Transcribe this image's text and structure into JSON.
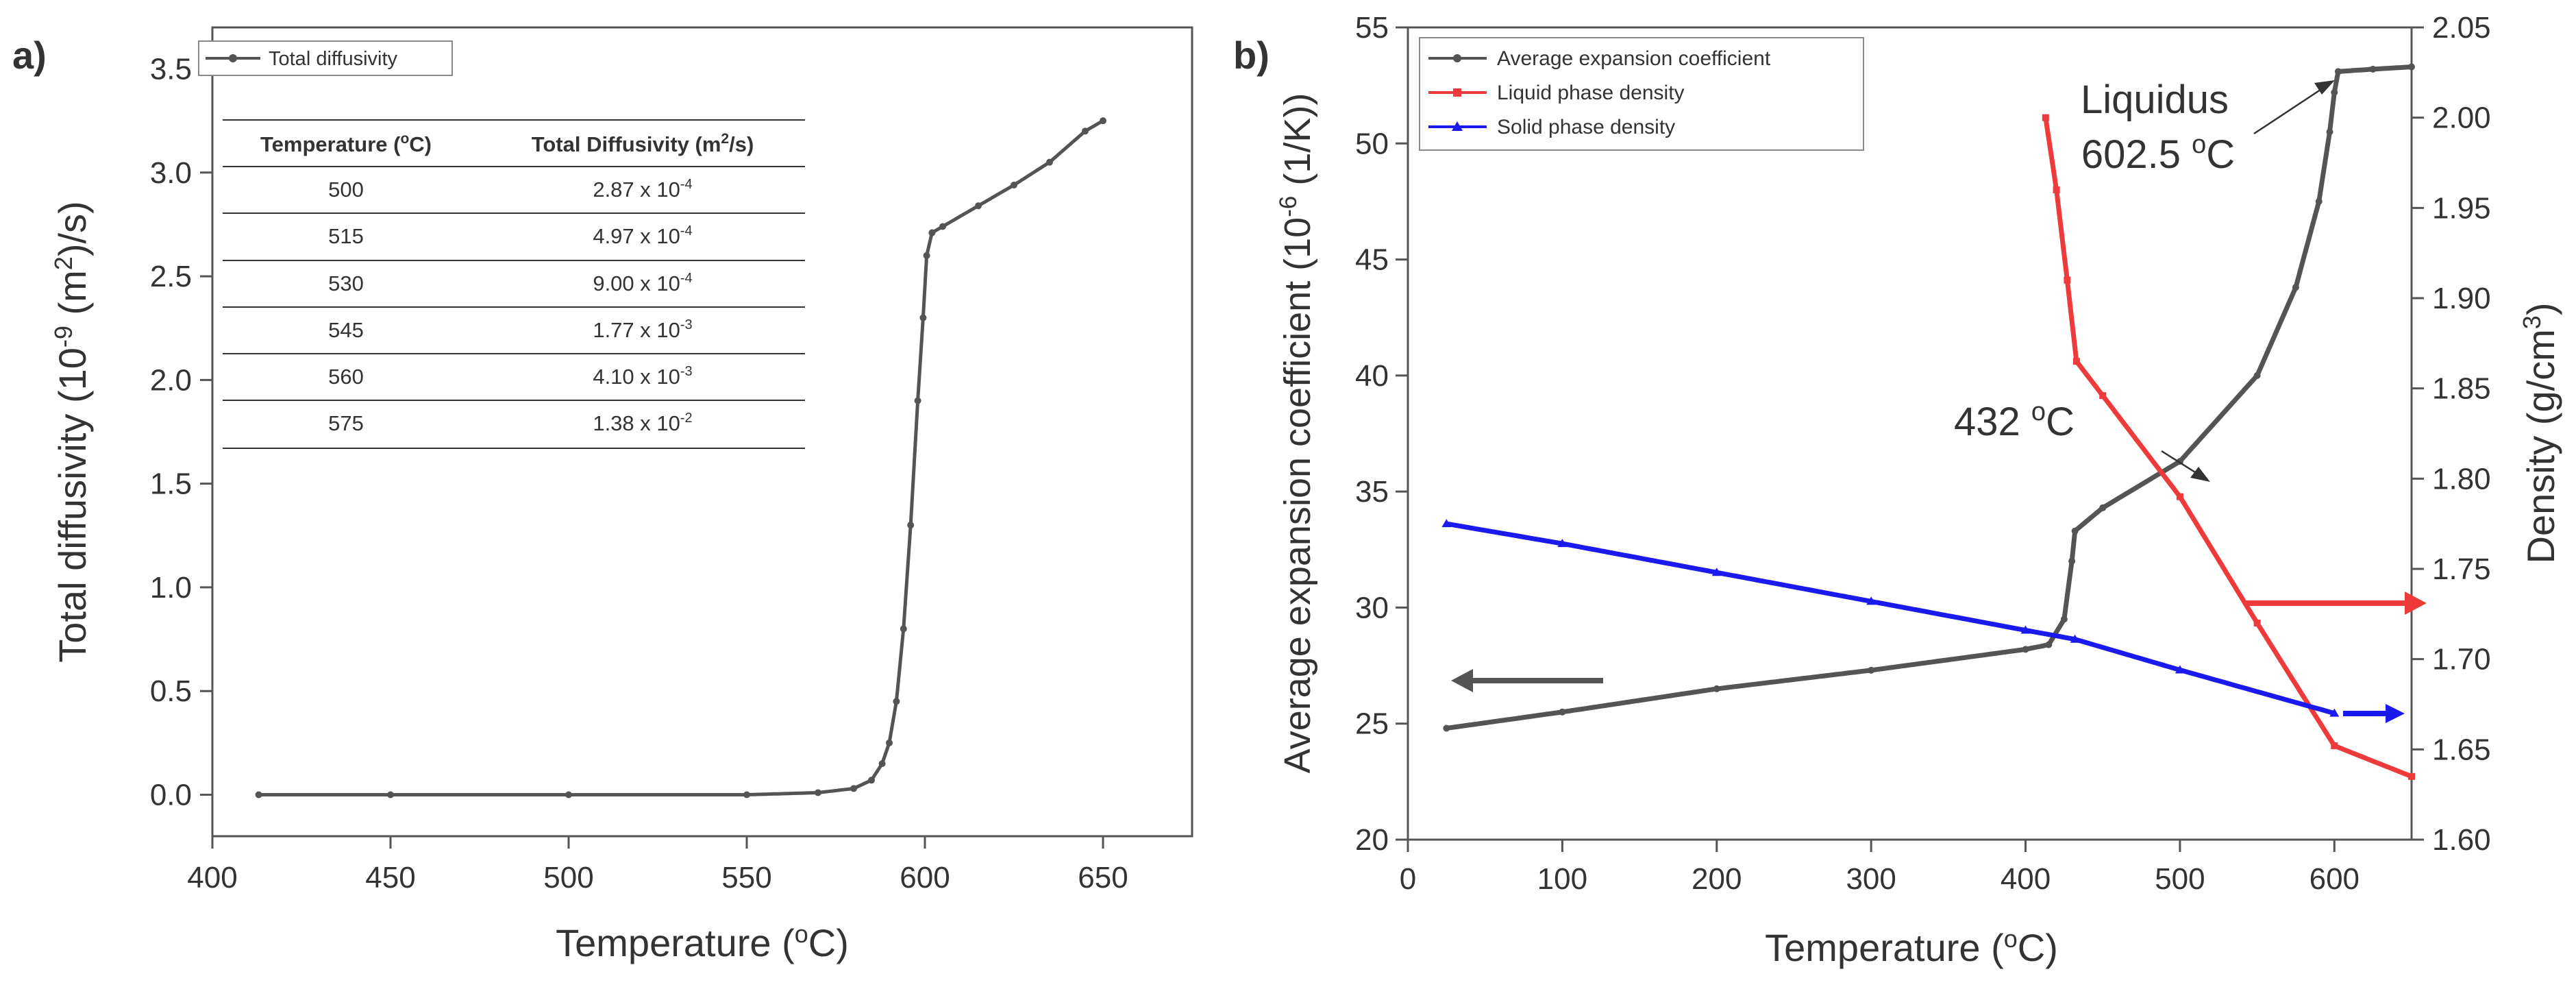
{
  "panel_a": {
    "label": "a)"
  },
  "panel_b": {
    "label": "b)"
  },
  "chart_data": [
    {
      "panel": "a",
      "type": "line",
      "xlabel": "Temperature (oC)",
      "ylabel": "Total diffusivity (10-9 (m2)/s)",
      "xlim": [
        400,
        675
      ],
      "ylim": [
        -0.2,
        3.7
      ],
      "xticks": [
        "400",
        "450",
        "500",
        "550",
        "600",
        "650"
      ],
      "yticks": [
        "0.0",
        "0.5",
        "1.0",
        "1.5",
        "2.0",
        "2.5",
        "3.0",
        "3.5"
      ],
      "legend": [
        "Total diffusivity"
      ],
      "series": [
        {
          "name": "Total diffusivity",
          "color": "#545454",
          "x": [
            413,
            450,
            500,
            550,
            570,
            580,
            585,
            588,
            590,
            592,
            594,
            596,
            598,
            599.5,
            600.5,
            602,
            605,
            615,
            625,
            635,
            645,
            650
          ],
          "y": [
            0.0,
            0.0,
            0.0,
            0.0,
            0.01,
            0.03,
            0.07,
            0.15,
            0.25,
            0.45,
            0.8,
            1.3,
            1.9,
            2.3,
            2.6,
            2.71,
            2.74,
            2.84,
            2.94,
            3.05,
            3.2,
            3.25
          ]
        }
      ],
      "inset_table": {
        "headers": [
          "Temperature (oC)",
          "Total Diffusivity (m2/s)"
        ],
        "rows": [
          [
            "500",
            "2.87 x 10-4"
          ],
          [
            "515",
            "4.97 x 10-4"
          ],
          [
            "530",
            "9.00 x 10-4"
          ],
          [
            "545",
            "1.77 x 10-3"
          ],
          [
            "560",
            "4.10 x 10-3"
          ],
          [
            "575",
            "1.38 x 10-2"
          ]
        ]
      }
    },
    {
      "panel": "b",
      "type": "line",
      "xlabel": "Temperature (oC)",
      "ylabel": "Average expansion coefficient (10-6 (1/K))",
      "ylabel_right": "Density (g/cm3)",
      "xlim": [
        0,
        650
      ],
      "ylim": [
        20,
        55
      ],
      "ylim_right": [
        1.6,
        2.05
      ],
      "xticks": [
        "0",
        "100",
        "200",
        "300",
        "400",
        "500",
        "600"
      ],
      "yticks": [
        "20",
        "25",
        "30",
        "35",
        "40",
        "45",
        "50",
        "55"
      ],
      "yticks_right": [
        "1.60",
        "1.65",
        "1.70",
        "1.75",
        "1.80",
        "1.85",
        "1.90",
        "1.95",
        "2.00",
        "2.05"
      ],
      "legend": [
        "Average expansion coefficient",
        "Liquid phase density",
        "Solid phase density"
      ],
      "series": [
        {
          "name": "Average expansion coefficient",
          "axis": "left",
          "color": "#545454",
          "x": [
            25,
            100,
            200,
            300,
            400,
            415,
            425,
            430,
            432,
            450,
            500,
            550,
            575,
            590,
            597,
            600,
            602.5,
            625,
            650
          ],
          "y": [
            24.8,
            25.5,
            26.5,
            27.3,
            28.2,
            28.4,
            29.5,
            32.0,
            33.3,
            34.3,
            36.3,
            40.0,
            43.8,
            47.5,
            50.5,
            52.2,
            53.1,
            53.2,
            53.3
          ]
        },
        {
          "name": "Liquid phase density",
          "axis": "right",
          "color": "#ee3a3a",
          "x": [
            413,
            420,
            427,
            433,
            450,
            500,
            550,
            600,
            650
          ],
          "y": [
            2.0,
            1.96,
            1.91,
            1.865,
            1.846,
            1.79,
            1.72,
            1.652,
            1.635
          ]
        },
        {
          "name": "Solid phase density",
          "axis": "right",
          "color": "#1a1aee",
          "x": [
            25,
            100,
            200,
            300,
            400,
            432,
            500,
            600
          ],
          "y": [
            1.775,
            1.764,
            1.748,
            1.732,
            1.716,
            1.711,
            1.694,
            1.67
          ]
        }
      ],
      "annotations": [
        {
          "text": "432 oC",
          "x": 432,
          "y": 33.3
        },
        {
          "text": "Liquidus",
          "x": 602.5,
          "y": 53.1
        },
        {
          "text": "602.5 oC",
          "x": 602.5,
          "y": 53.1
        }
      ]
    }
  ]
}
